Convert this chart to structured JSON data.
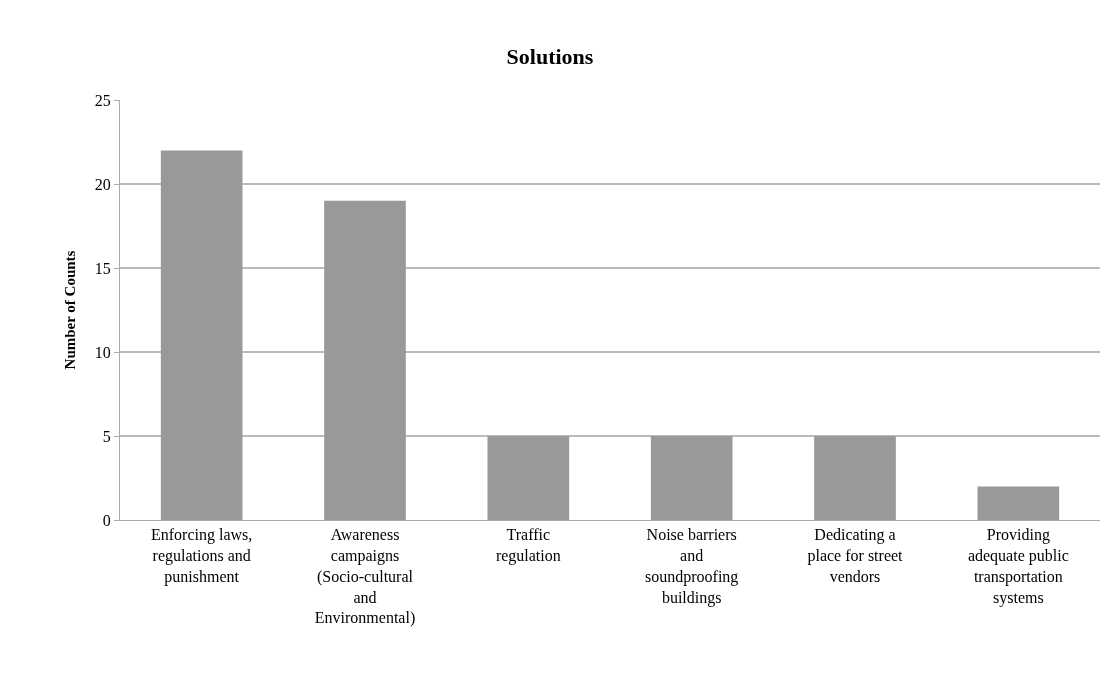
{
  "chart_data": {
    "type": "bar",
    "title": "Solutions",
    "ylabel": "Number of Counts",
    "categories": [
      "Enforcing laws, regulations and punishment",
      "Awareness campaigns (Socio-cultural and Environmental)",
      "Traffic regulation",
      "Noise barriers and soundproofing buildings",
      "Dedicating a place for street vendors",
      "Providing adequate public transportation systems"
    ],
    "values": [
      22,
      19,
      5,
      5,
      5,
      2
    ],
    "color": "#999999",
    "ylim": [
      0,
      25
    ],
    "yticks": [
      0,
      5,
      10,
      15,
      20,
      25
    ],
    "grid": "y",
    "legend": false
  }
}
